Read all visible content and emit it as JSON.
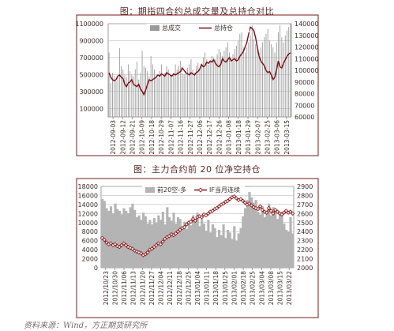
{
  "page": {
    "source_note": "资料来源：Wind，方正期货研究所"
  },
  "colors": {
    "frame": "#7a1a1a",
    "plot_bg_1": "#ffffff",
    "plot_bg_2": "#ffffff",
    "bar_1": "#9a9a9a",
    "bar_2": "#b4b4b4",
    "line_1": "#7a0a14",
    "line_2": "#8a1010",
    "marker_fill": "#ffffff",
    "grid": "#b0b0b0",
    "text": "#3a2a2a"
  },
  "chart_data": [
    {
      "type": "bar+line",
      "title": "图：期指四合约总成交量及总持仓对比",
      "legend": [
        "总成交",
        "总持仓"
      ],
      "legend_position": "top-center",
      "grid": true,
      "x_tick_labels": [
        "2012-09-03",
        "2012-09-12",
        "2012-09-21",
        "2012-10-09",
        "2012-10-18",
        "2012-10-29",
        "2012-11-07",
        "2012-11-16",
        "2012-11-27",
        "2012-12-06",
        "2012-12-17",
        "2012-12-26",
        "2013-01-08",
        "2013-01-18",
        "2013-01-29",
        "2013-02-07",
        "2013-02-25",
        "2013-03-06",
        "2013-03-15"
      ],
      "y_left_ticks": [
        100000,
        300000,
        500000,
        700000,
        900000,
        1100000
      ],
      "y_left_tick_labels": [
        "100000",
        "300000",
        "500000",
        "700000",
        "900000",
        "1100000"
      ],
      "y_left_range": [
        0,
        1100000
      ],
      "y_right_ticks": [
        60000,
        70000,
        80000,
        90000,
        100000,
        110000,
        120000,
        130000,
        140000
      ],
      "y_right_tick_labels": [
        "60000",
        "70000",
        "80000",
        "90000",
        "100000",
        "110000",
        "120000",
        "130000",
        "140000"
      ],
      "y_right_range": [
        60000,
        140000
      ],
      "series": [
        {
          "name": "总成交",
          "kind": "bar",
          "axis": "left",
          "values": [
            760000,
            400000,
            520000,
            480000,
            420000,
            460000,
            810000,
            600000,
            560000,
            500000,
            470000,
            620000,
            540000,
            500000,
            480000,
            560000,
            650000,
            440000,
            520000,
            780000,
            600000,
            580000,
            540000,
            480000,
            720000,
            620000,
            560000,
            500000,
            460000,
            540000,
            620000,
            480000,
            520000,
            600000,
            560000,
            500000,
            480000,
            520000,
            620000,
            560000,
            600000,
            660000,
            520000,
            500000,
            540000,
            580000,
            620000,
            680000,
            560000,
            520000,
            600000,
            640000,
            580000,
            620000,
            700000,
            760000,
            680000,
            620000,
            660000,
            720000,
            700000,
            680000,
            740000,
            800000,
            760000,
            720000,
            780000,
            820000,
            880000,
            760000,
            700000,
            740000,
            800000,
            840000,
            900000,
            980000,
            1000000,
            820000,
            760000,
            820000,
            880000,
            960000,
            1080000,
            920000,
            860000,
            800000,
            760000,
            820000,
            880000,
            940000,
            980000,
            1040000,
            900000,
            860000,
            820000,
            760000,
            880000,
            1000000,
            1080000,
            940000,
            880000,
            960000,
            1020000,
            1060000,
            1100000
          ]
        },
        {
          "name": "总持仓",
          "kind": "line",
          "axis": "right",
          "values": [
            98000,
            94000,
            92000,
            91000,
            92000,
            95000,
            96000,
            94000,
            93000,
            88000,
            86000,
            89000,
            90000,
            92000,
            88000,
            87000,
            86000,
            88000,
            84000,
            82000,
            79000,
            83000,
            88000,
            92000,
            91000,
            92000,
            93000,
            94000,
            96000,
            95000,
            97000,
            96000,
            95000,
            98000,
            97000,
            96000,
            95000,
            97000,
            96000,
            97000,
            98000,
            99000,
            102000,
            100000,
            98000,
            97000,
            96000,
            98000,
            97000,
            96000,
            98000,
            99000,
            101000,
            105000,
            103000,
            104000,
            107000,
            106000,
            108000,
            107000,
            109000,
            106000,
            104000,
            103000,
            105000,
            110000,
            108000,
            107000,
            109000,
            111000,
            108000,
            109000,
            110000,
            108000,
            109000,
            112000,
            114000,
            116000,
            120000,
            124000,
            131000,
            137000,
            136000,
            134000,
            128000,
            120000,
            112000,
            108000,
            106000,
            104000,
            100000,
            98000,
            99000,
            96000,
            92000,
            94000,
            100000,
            108000,
            103000,
            102000,
            106000,
            109000,
            112000,
            114000,
            115000
          ]
        }
      ]
    },
    {
      "type": "area+line",
      "title": "图：主力合约前 20 位净空持仓",
      "legend": [
        "前20空-多",
        "IF当月连续"
      ],
      "legend_position": "top-center",
      "grid": true,
      "x_tick_labels": [
        "2012/10/23",
        "2012/10/30",
        "2012/11/06",
        "2012/11/13",
        "2012/11/20",
        "2012/11/27",
        "2012/12/04",
        "2012/12/11",
        "2012/12/18",
        "2012/12/25",
        "2013/01/04",
        "2013/01/11",
        "2013/01/18",
        "2013/01/25",
        "2013/02/01",
        "2013/02/18",
        "2013/02/25",
        "2013/03/04",
        "2013/03/08",
        "2013/03/15",
        "2013/03/22"
      ],
      "y_left_ticks": [
        0,
        2000,
        4000,
        6000,
        8000,
        10000,
        12000,
        14000,
        16000,
        18000
      ],
      "y_left_tick_labels": [
        "0",
        "2000",
        "4000",
        "6000",
        "8000",
        "10000",
        "12000",
        "14000",
        "16000",
        "18000"
      ],
      "y_left_range": [
        0,
        18000
      ],
      "y_right_ticks": [
        2000,
        2100,
        2200,
        2300,
        2400,
        2500,
        2600,
        2700,
        2800,
        2900
      ],
      "y_right_tick_labels": [
        "2000",
        "2100",
        "2200",
        "2300",
        "2400",
        "2500",
        "2600",
        "2700",
        "2800",
        "2900"
      ],
      "y_right_range": [
        2000,
        2900
      ],
      "series": [
        {
          "name": "前20空-多",
          "kind": "bar",
          "axis": "left",
          "values": [
            15200,
            14800,
            13200,
            12600,
            13600,
            12000,
            14200,
            13000,
            12600,
            11800,
            13200,
            12600,
            12000,
            13400,
            14200,
            12800,
            11200,
            11600,
            10600,
            12200,
            11400,
            9800,
            10600,
            9600,
            11000,
            10000,
            11600,
            10600,
            12400,
            9600,
            13400,
            11200,
            10400,
            12200,
            9800,
            11200,
            10800,
            9000,
            10200,
            8600,
            10400,
            9400,
            11600,
            10000,
            12200,
            9200,
            10800,
            9800,
            8200,
            10600,
            7800,
            9600,
            8800,
            6800,
            8400,
            7200,
            9600,
            6600,
            8400,
            7800,
            6400,
            9200,
            6000,
            7600,
            8800,
            11400,
            13200,
            15000,
            16800,
            15600,
            14400,
            15000,
            12400,
            11800,
            13600,
            11200,
            12600,
            14200,
            11600,
            13400,
            12800,
            10800,
            11600,
            12400,
            9800,
            8400,
            8000,
            11200,
            7600
          ]
        },
        {
          "name": "IF当月连续",
          "kind": "line",
          "axis": "right",
          "values": [
            2330,
            2310,
            2280,
            2260,
            2270,
            2250,
            2260,
            2240,
            2230,
            2250,
            2270,
            2250,
            2230,
            2220,
            2210,
            2190,
            2180,
            2170,
            2160,
            2140,
            2150,
            2170,
            2200,
            2210,
            2230,
            2250,
            2270,
            2260,
            2290,
            2320,
            2340,
            2350,
            2370,
            2360,
            2380,
            2400,
            2420,
            2440,
            2450,
            2480,
            2500,
            2510,
            2540,
            2520,
            2560,
            2570,
            2560,
            2590,
            2580,
            2600,
            2620,
            2630,
            2650,
            2660,
            2680,
            2700,
            2710,
            2730,
            2740,
            2760,
            2780,
            2790,
            2770,
            2750,
            2760,
            2740,
            2720,
            2700,
            2710,
            2690,
            2670,
            2660,
            2650,
            2680,
            2640,
            2620,
            2610,
            2660,
            2630,
            2600,
            2640,
            2620,
            2600,
            2590,
            2610,
            2630,
            2610,
            2620,
            2600
          ]
        }
      ]
    }
  ]
}
